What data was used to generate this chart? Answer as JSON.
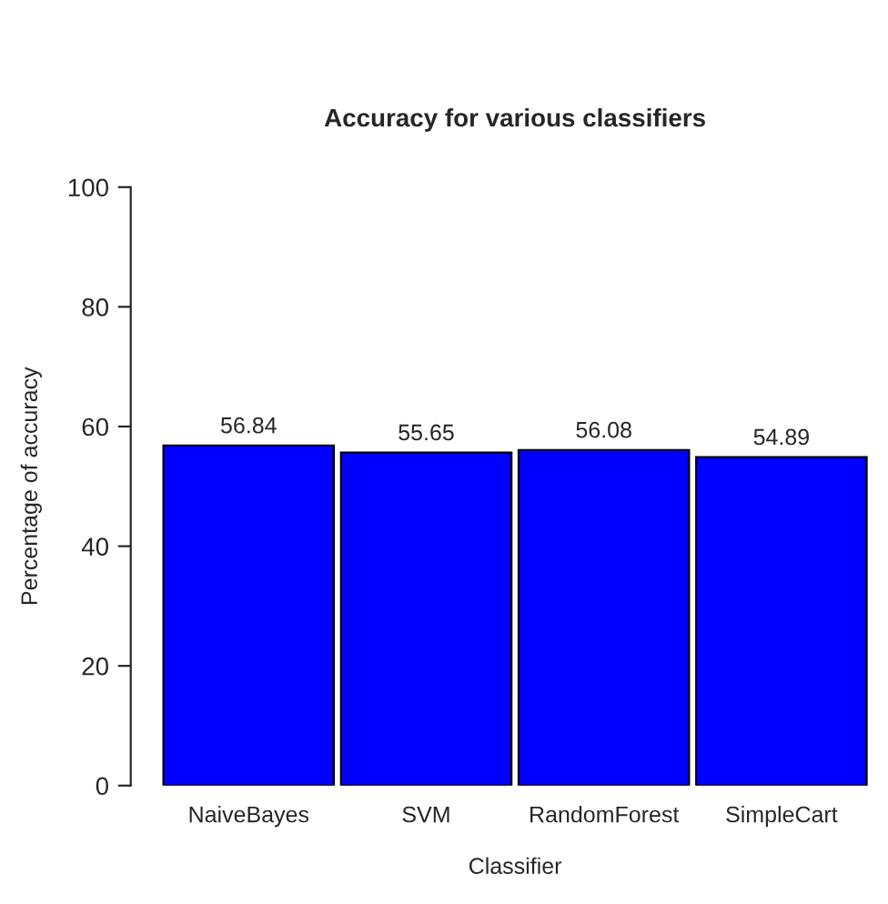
{
  "chart_data": {
    "type": "bar",
    "title": "Accuracy for various classifiers",
    "xlabel": "Classifier",
    "ylabel": "Percentage of accuracy",
    "categories": [
      "NaiveBayes",
      "SVM",
      "RandomForest",
      "SimpleCart"
    ],
    "values": [
      56.84,
      55.65,
      56.08,
      54.89
    ],
    "color": "#0000ff",
    "ylim": [
      0,
      100
    ],
    "yticks": [
      0,
      20,
      40,
      60,
      80,
      100
    ],
    "data_labels": true,
    "grid": false,
    "legend": false
  }
}
